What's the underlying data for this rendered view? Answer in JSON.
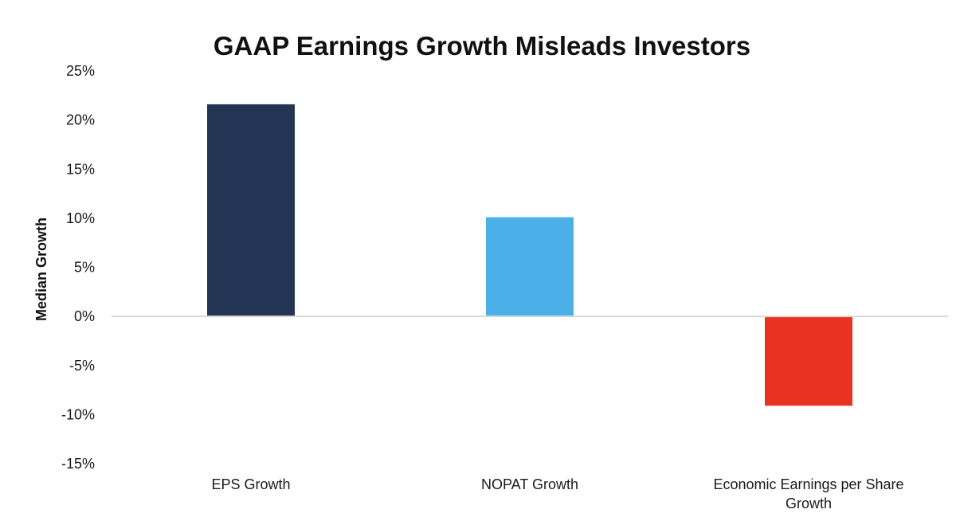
{
  "chart_data": {
    "type": "bar",
    "title": "GAAP Earnings Growth Misleads Investors",
    "ylabel": "Median Growth",
    "xlabel": "",
    "categories": [
      [
        "EPS Growth"
      ],
      [
        "NOPAT Growth"
      ],
      [
        "Economic Earnings per Share",
        "Growth"
      ]
    ],
    "values": [
      21.6,
      10.1,
      -9.1
    ],
    "bar_colors": [
      "#223555",
      "#4bb0e8",
      "#e83323"
    ],
    "ylim": [
      -15,
      25
    ],
    "yticks": [
      25,
      20,
      15,
      10,
      5,
      0,
      -5,
      -10,
      -15
    ],
    "ytick_labels": [
      "25%",
      "20%",
      "15%",
      "10%",
      "5%",
      "0%",
      "-5%",
      "-10%",
      "-15%"
    ],
    "grid": false,
    "legend": "none"
  }
}
